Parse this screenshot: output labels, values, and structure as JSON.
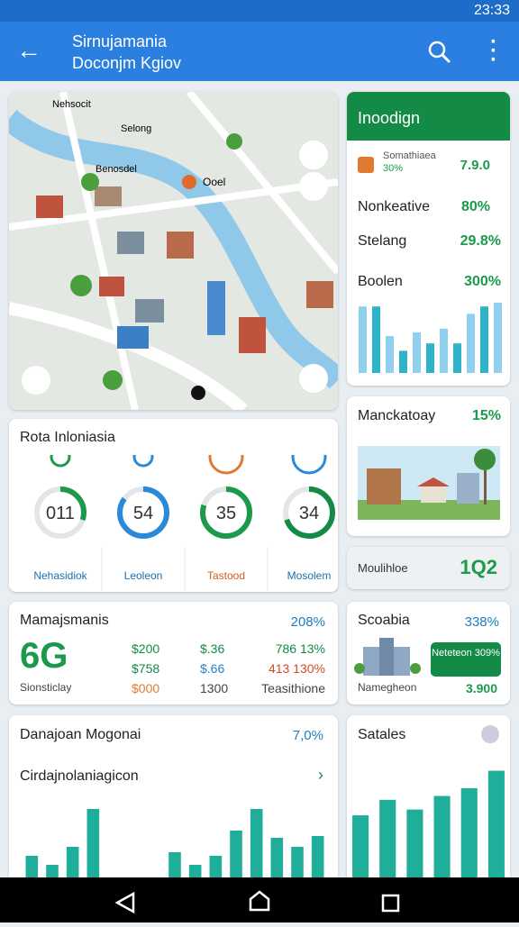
{
  "status_bar": {
    "time": "23:33"
  },
  "app_bar": {
    "title": "Sirnujamania",
    "subtitle": "Doconjm Kgiov"
  },
  "map": {
    "labels": [
      "Nehsocit",
      "Selong",
      "Benosdel",
      "Ooel"
    ]
  },
  "insights": {
    "title": "Inoodign",
    "rows": [
      {
        "label": "Somathiaea",
        "sub": "30%",
        "value": "7.9.0"
      },
      {
        "label": "Nonkeative",
        "value": "80%"
      },
      {
        "label": "Stelang",
        "value": "29.8%"
      },
      {
        "label": "Boolen",
        "value": "300%"
      }
    ],
    "bars": [
      90,
      90,
      50,
      30,
      55,
      40,
      60,
      40,
      80,
      90,
      95
    ]
  },
  "market": {
    "title": "Manckatoay",
    "value": "15%"
  },
  "mobile": {
    "title": "Moulihloe",
    "value": "1Q2"
  },
  "rota": {
    "title": "Rota Inloniasia",
    "gauges": [
      {
        "value": "011",
        "label": "Nehasidiok"
      },
      {
        "value": "54",
        "label": "Leoleon"
      },
      {
        "value": "35",
        "label": "Tastood"
      },
      {
        "value": "34",
        "label": "Mosolem"
      }
    ]
  },
  "stats": {
    "title": "Mamajsmanis",
    "change": "208%",
    "big": "6G",
    "caption": "Sionsticlay",
    "columns": [
      [
        "$200",
        "$758",
        "$000"
      ],
      [
        "$.36",
        "$.66",
        "1300"
      ],
      [
        "786 13%",
        "413 130%",
        "Teasithione"
      ]
    ]
  },
  "scabia": {
    "title": "Scoabia",
    "change": "338%",
    "badge": "Neteteon 309%",
    "caption": "Namegheon",
    "value": "3.900"
  },
  "danajoan": {
    "title": "Danajoan Mogonai",
    "change": "7,0%",
    "subtitle": "Cirdajnolaniagicon",
    "bars": [
      24,
      14,
      34,
      76,
      null,
      null,
      null,
      28,
      14,
      24,
      52,
      76,
      44,
      34,
      46
    ]
  },
  "satales": {
    "title": "Satales",
    "bars": [
      64,
      80,
      70,
      84,
      92,
      110
    ]
  }
}
